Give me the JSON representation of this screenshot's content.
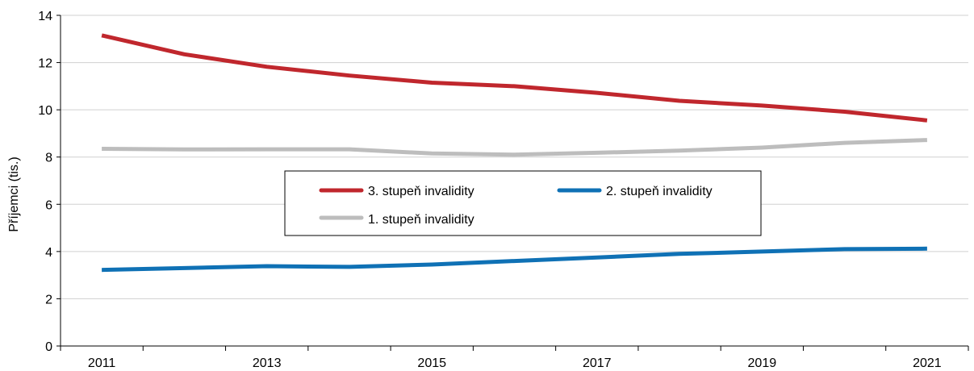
{
  "chart_data": {
    "type": "line",
    "title": "",
    "xlabel": "",
    "ylabel": "Příjemci (tis.)",
    "x": [
      2011,
      2012,
      2013,
      2014,
      2015,
      2016,
      2017,
      2018,
      2019,
      2020,
      2021
    ],
    "x_tick_labels": [
      "2011",
      "2013",
      "2015",
      "2017",
      "2019",
      "2021"
    ],
    "ylim": [
      0,
      14
    ],
    "y_ticks": [
      0,
      2,
      4,
      6,
      8,
      10,
      12,
      14
    ],
    "grid": "horizontal",
    "legend_placement": "center",
    "series": [
      {
        "name": "3. stupeň invalidity",
        "color": "#c0272d",
        "values": [
          13.15,
          12.35,
          11.82,
          11.45,
          11.15,
          11.0,
          10.72,
          10.38,
          10.18,
          9.92,
          9.55
        ]
      },
      {
        "name": "2. stupeň invalidity",
        "color": "#0f71b5",
        "values": [
          3.22,
          3.3,
          3.38,
          3.35,
          3.45,
          3.6,
          3.75,
          3.9,
          4.0,
          4.1,
          4.12
        ]
      },
      {
        "name": "1. stupeň invalidity",
        "color": "#bdbdbd",
        "values": [
          8.35,
          8.32,
          8.33,
          8.33,
          8.15,
          8.1,
          8.18,
          8.27,
          8.4,
          8.6,
          8.72
        ]
      }
    ]
  }
}
